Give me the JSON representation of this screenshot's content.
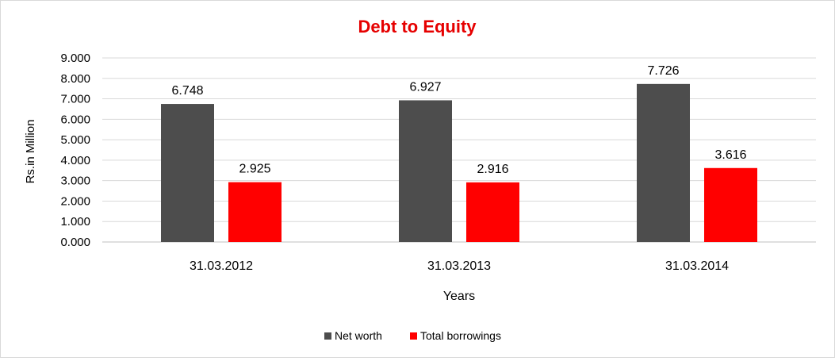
{
  "chart_data": {
    "type": "bar",
    "title": "Debt to Equity",
    "xlabel": "Years",
    "ylabel": "Rs.in Million",
    "categories": [
      "31.03.2012",
      "31.03.2013",
      "31.03.2014"
    ],
    "series": [
      {
        "name": "Net worth",
        "values": [
          6.748,
          6.927,
          7.726
        ],
        "labels": [
          "6.748",
          "6.927",
          "7.726"
        ],
        "color": "#4d4d4d"
      },
      {
        "name": "Total borrowings",
        "values": [
          2.925,
          2.916,
          3.616
        ],
        "labels": [
          "2.925",
          "2.916",
          "3.616"
        ],
        "color": "#ff0000"
      }
    ],
    "ylim": [
      0,
      9
    ],
    "yticks": [
      "0.000",
      "1.000",
      "2.000",
      "3.000",
      "4.000",
      "5.000",
      "6.000",
      "7.000",
      "8.000",
      "9.000"
    ],
    "grid": true,
    "legend": "bottom",
    "title_color": "#e60000"
  }
}
